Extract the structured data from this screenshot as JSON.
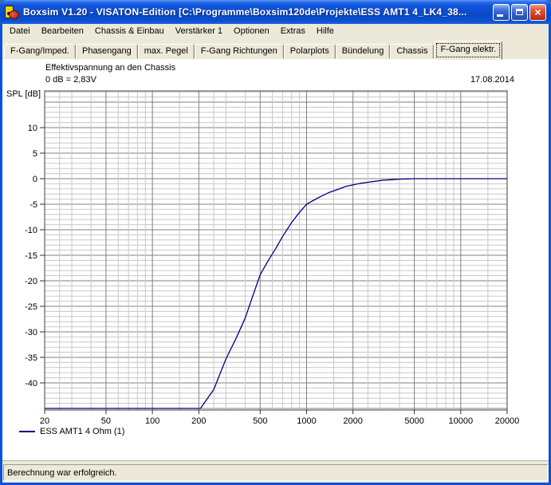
{
  "window": {
    "title": "Boxsim V1.20 - VISATON-Edition [C:\\Programme\\Boxsim120de\\Projekte\\ESS AMT1 4_LK4_38...",
    "caption_buttons": [
      "minimize",
      "maximize",
      "close"
    ]
  },
  "menu": {
    "items": [
      "Datei",
      "Bearbeiten",
      "Chassis & Einbau",
      "Verstärker 1",
      "Optionen",
      "Extras",
      "Hilfe"
    ]
  },
  "tabs": {
    "items": [
      "F-Gang/Imped.",
      "Phasengang",
      "max. Pegel",
      "F-Gang Richtungen",
      "Polarplots",
      "Bündelung",
      "Chassis",
      "F-Gang elektr."
    ],
    "active": "F-Gang elektr."
  },
  "chart": {
    "title": "Effektivspannung an den Chassis",
    "subtitle": "0 dB = 2,83V",
    "date": "17.08.2014",
    "y_axis_label": "SPL [dB]"
  },
  "chart_data": {
    "type": "line",
    "title": "Effektivspannung an den Chassis",
    "subtitle": "0 dB = 2,83V",
    "date_label": "17.08.2014",
    "x_axis": {
      "scale": "log",
      "unit": "Hz",
      "min": 20,
      "max": 20000,
      "ticks": [
        20,
        50,
        100,
        200,
        500,
        1000,
        2000,
        5000,
        10000,
        20000
      ],
      "minor_lines": [
        25,
        30,
        40,
        60,
        70,
        80,
        90,
        150,
        250,
        300,
        400,
        600,
        700,
        800,
        900,
        1500,
        2500,
        3000,
        4000,
        6000,
        7000,
        8000,
        9000,
        15000
      ]
    },
    "y_axis": {
      "label": "SPL [dB]",
      "min": -45.3,
      "max": 17.2,
      "ticks": [
        10,
        5,
        0,
        -5,
        -10,
        -15,
        -20,
        -25,
        -30,
        -35,
        -40
      ],
      "minor_step": 1,
      "major_step": 5
    },
    "grid": {
      "on": true,
      "minor_color": "#c8c8c8",
      "major_color": "#808080",
      "frame_color": "#404040",
      "tick_color": "#303030"
    },
    "legend": {
      "position": "bottom-left",
      "entries": [
        "ESS AMT1 4 Ohm (1)"
      ]
    },
    "series": [
      {
        "name": "ESS AMT1 4 Ohm (1)",
        "color": "#000080",
        "points": [
          [
            20,
            -45
          ],
          [
            50,
            -45
          ],
          [
            100,
            -45
          ],
          [
            150,
            -45
          ],
          [
            205,
            -45
          ],
          [
            250,
            -41.3
          ],
          [
            300,
            -35.3
          ],
          [
            350,
            -31.2
          ],
          [
            400,
            -27.3
          ],
          [
            450,
            -22.8
          ],
          [
            500,
            -18.8
          ],
          [
            560,
            -16.2
          ],
          [
            630,
            -13.7
          ],
          [
            700,
            -11.3
          ],
          [
            800,
            -8.6
          ],
          [
            900,
            -6.6
          ],
          [
            1000,
            -5.0
          ],
          [
            1100,
            -4.3
          ],
          [
            1250,
            -3.4
          ],
          [
            1400,
            -2.7
          ],
          [
            1600,
            -2.1
          ],
          [
            1800,
            -1.5
          ],
          [
            2000,
            -1.2
          ],
          [
            2240,
            -0.9
          ],
          [
            2500,
            -0.7
          ],
          [
            2800,
            -0.5
          ],
          [
            3150,
            -0.3
          ],
          [
            3550,
            -0.2
          ],
          [
            4000,
            -0.1
          ],
          [
            4500,
            -0.05
          ],
          [
            5000,
            0
          ],
          [
            6300,
            0
          ],
          [
            8000,
            0
          ],
          [
            10000,
            0
          ],
          [
            14000,
            0
          ],
          [
            20000,
            0
          ]
        ]
      }
    ]
  },
  "status_bar": {
    "text": "Berechnung war erfolgreich."
  },
  "colors": {
    "titlebar_blue": "#0c52d8",
    "chrome_beige": "#ECE9D8",
    "curve_navy": "#000080",
    "close_button_red": "#c93a20"
  }
}
